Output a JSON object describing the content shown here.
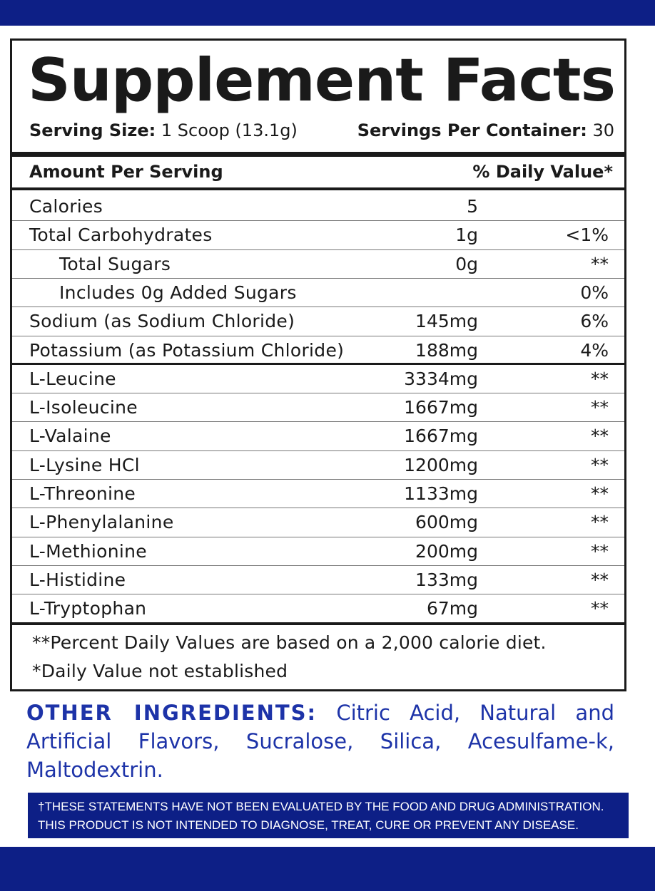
{
  "colors": {
    "brand_blue": "#0d1f86",
    "ingredient_blue": "#1d33a8",
    "ink": "#1a1a1a"
  },
  "label": {
    "title": "Supplement Facts",
    "serving_size_label": "Serving Size:",
    "serving_size_value": " 1 Scoop (13.1g)",
    "servings_label": "Servings Per Container:",
    "servings_value": " 30",
    "amount_header": "Amount Per Serving",
    "dv_header": "% Daily Value*",
    "rows": [
      {
        "name": "Calories",
        "amount": "5",
        "dv": ""
      },
      {
        "name": "Total Carbohydrates",
        "amount": "1g",
        "dv": "<1%"
      },
      {
        "name": "Total Sugars",
        "amount": "0g",
        "dv": "**"
      },
      {
        "name": "Includes 0g Added Sugars",
        "amount": "",
        "dv": "0%"
      },
      {
        "name": "Sodium (as Sodium Chloride)",
        "amount": "145mg",
        "dv": "6%"
      },
      {
        "name": "Potassium (as Potassium Chloride)",
        "amount": "188mg",
        "dv": "4%"
      },
      {
        "name": "L-Leucine",
        "amount": "3334mg",
        "dv": "**"
      },
      {
        "name": "L-Isoleucine",
        "amount": "1667mg",
        "dv": "**"
      },
      {
        "name": "L-Valaine",
        "amount": "1667mg",
        "dv": "**"
      },
      {
        "name": "L-Lysine HCl",
        "amount": "1200mg",
        "dv": "**"
      },
      {
        "name": "L-Threonine",
        "amount": "1133mg",
        "dv": "**"
      },
      {
        "name": "L-Phenylalanine",
        "amount": "600mg",
        "dv": "**"
      },
      {
        "name": "L-Methionine",
        "amount": "200mg",
        "dv": "**"
      },
      {
        "name": "L-Histidine",
        "amount": "133mg",
        "dv": "**"
      },
      {
        "name": "L-Tryptophan",
        "amount": "67mg",
        "dv": "**"
      }
    ],
    "footnote_1": "**Percent Daily Values are based on a 2,000 calorie diet.",
    "footnote_2": "*Daily Value not established"
  },
  "other_ingredients": {
    "heading": "OTHER INGREDIENTS:",
    "text": " Citric Acid, Natural and Artificial Flavors, Sucralose, Silica, Acesulfame-k, Maltodextrin."
  },
  "disclaimer": {
    "line_1": "†THESE STATEMENTS HAVE NOT BEEN EVALUATED BY THE FOOD AND DRUG ADMINISTRATION.",
    "line_2": "THIS PRODUCT IS NOT INTENDED TO DIAGNOSE, TREAT, CURE OR PREVENT ANY DISEASE."
  }
}
